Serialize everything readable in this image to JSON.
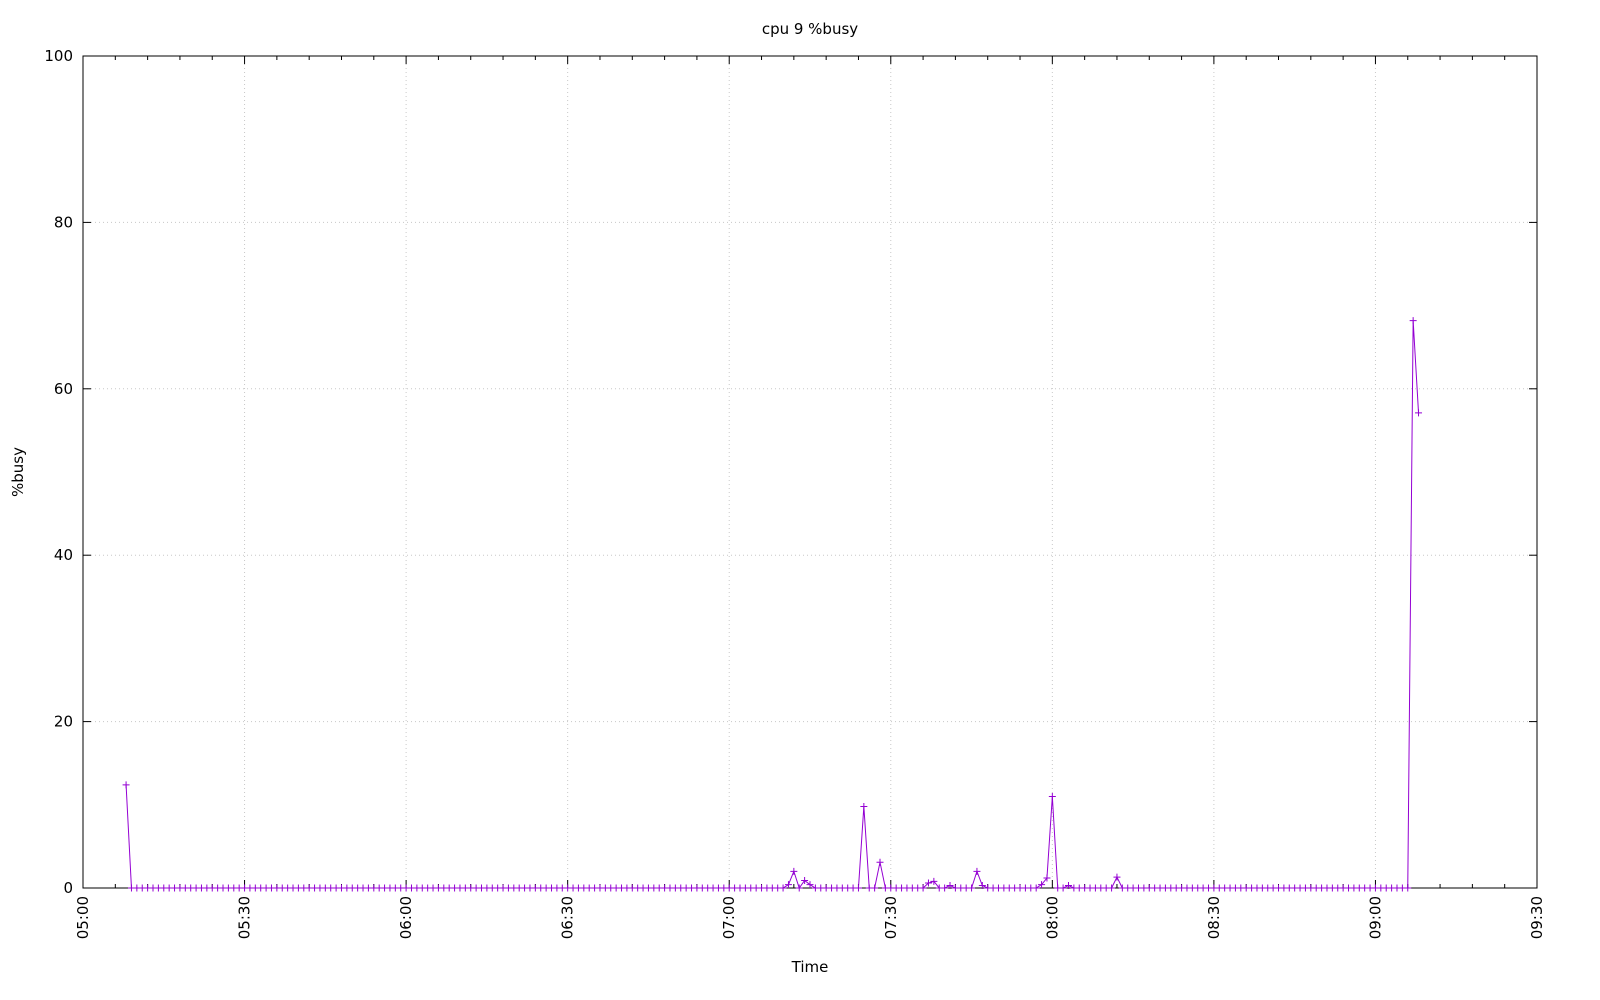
{
  "chart_data": {
    "type": "line",
    "title": "cpu 9 %busy",
    "xlabel": "Time",
    "ylabel": "%busy",
    "xlim": [
      "05:00",
      "09:30"
    ],
    "ylim": [
      0,
      100
    ],
    "x_ticks": [
      "05:00",
      "05:30",
      "06:00",
      "06:30",
      "07:00",
      "07:30",
      "08:00",
      "08:30",
      "09:00",
      "09:30"
    ],
    "y_ticks": [
      "0",
      "20",
      "40",
      "60",
      "80",
      "100"
    ],
    "grid": true,
    "marker": "plus",
    "color": "#9400d3",
    "series": [
      {
        "x": [
          "05:08",
          "05:09",
          "05:10",
          "05:11",
          "05:12",
          "05:13",
          "05:14",
          "05:15",
          "05:16",
          "05:17",
          "05:18",
          "05:19",
          "05:20",
          "05:21",
          "05:22",
          "05:23",
          "05:24",
          "05:25",
          "05:26",
          "05:27",
          "05:28",
          "05:29",
          "05:30",
          "05:31",
          "05:32",
          "05:33",
          "05:34",
          "05:35",
          "05:36",
          "05:37",
          "05:38",
          "05:39",
          "05:40",
          "05:41",
          "05:42",
          "05:43",
          "05:44",
          "05:45",
          "05:46",
          "05:47",
          "05:48",
          "05:49",
          "05:50",
          "05:51",
          "05:52",
          "05:53",
          "05:54",
          "05:55",
          "05:56",
          "05:57",
          "05:58",
          "05:59",
          "06:00",
          "06:01",
          "06:02",
          "06:03",
          "06:04",
          "06:05",
          "06:06",
          "06:07",
          "06:08",
          "06:09",
          "06:10",
          "06:11",
          "06:12",
          "06:13",
          "06:14",
          "06:15",
          "06:16",
          "06:17",
          "06:18",
          "06:19",
          "06:20",
          "06:21",
          "06:22",
          "06:23",
          "06:24",
          "06:25",
          "06:26",
          "06:27",
          "06:28",
          "06:29",
          "06:30",
          "06:31",
          "06:32",
          "06:33",
          "06:34",
          "06:35",
          "06:36",
          "06:37",
          "06:38",
          "06:39",
          "06:40",
          "06:41",
          "06:42",
          "06:43",
          "06:44",
          "06:45",
          "06:46",
          "06:47",
          "06:48",
          "06:49",
          "06:50",
          "06:51",
          "06:52",
          "06:53",
          "06:54",
          "06:55",
          "06:56",
          "06:57",
          "06:58",
          "06:59",
          "07:00",
          "07:01",
          "07:02",
          "07:03",
          "07:04",
          "07:05",
          "07:06",
          "07:07",
          "07:08",
          "07:09",
          "07:10",
          "07:11",
          "07:12",
          "07:13",
          "07:14",
          "07:15",
          "07:16",
          "07:17",
          "07:18",
          "07:19",
          "07:20",
          "07:21",
          "07:22",
          "07:23",
          "07:24",
          "07:25",
          "07:26",
          "07:27",
          "07:28",
          "07:29",
          "07:30",
          "07:31",
          "07:32",
          "07:33",
          "07:34",
          "07:35",
          "07:36",
          "07:37",
          "07:38",
          "07:39",
          "07:40",
          "07:41",
          "07:42",
          "07:43",
          "07:44",
          "07:45",
          "07:46",
          "07:47",
          "07:48",
          "07:49",
          "07:50",
          "07:51",
          "07:52",
          "07:53",
          "07:54",
          "07:55",
          "07:56",
          "07:57",
          "07:58",
          "07:59",
          "08:00",
          "08:01",
          "08:02",
          "08:03",
          "08:04",
          "08:05",
          "08:06",
          "08:07",
          "08:08",
          "08:09",
          "08:10",
          "08:11",
          "08:12",
          "08:13",
          "08:14",
          "08:15",
          "08:16",
          "08:17",
          "08:18",
          "08:19",
          "08:20",
          "08:21",
          "08:22",
          "08:23",
          "08:24",
          "08:25",
          "08:26",
          "08:27",
          "08:28",
          "08:29",
          "08:30",
          "08:31",
          "08:32",
          "08:33",
          "08:34",
          "08:35",
          "08:36",
          "08:37",
          "08:38",
          "08:39",
          "08:40",
          "08:41",
          "08:42",
          "08:43",
          "08:44",
          "08:45",
          "08:46",
          "08:47",
          "08:48",
          "08:49",
          "08:50",
          "08:51",
          "08:52",
          "08:53",
          "08:54",
          "08:55",
          "08:56",
          "08:57",
          "08:58",
          "08:59",
          "09:00",
          "09:01",
          "09:02",
          "09:03",
          "09:04",
          "09:05",
          "09:06",
          "09:07",
          "09:08"
        ],
        "y": [
          12.4,
          0,
          0,
          0,
          0,
          0,
          0,
          0,
          0,
          0,
          0,
          0,
          0,
          0,
          0,
          0,
          0,
          0,
          0,
          0,
          0,
          0,
          0,
          0,
          0,
          0,
          0,
          0,
          0,
          0,
          0,
          0,
          0,
          0,
          0,
          0,
          0,
          0,
          0,
          0,
          0,
          0,
          0,
          0,
          0,
          0,
          0,
          0,
          0,
          0,
          0,
          0,
          0,
          0,
          0,
          0,
          0,
          0,
          0,
          0,
          0,
          0,
          0,
          0,
          0,
          0,
          0,
          0,
          0,
          0,
          0,
          0,
          0,
          0,
          0,
          0,
          0,
          0,
          0,
          0,
          0,
          0,
          0,
          0,
          0,
          0,
          0,
          0,
          0,
          0,
          0,
          0,
          0,
          0,
          0,
          0,
          0,
          0,
          0,
          0,
          0,
          0,
          0,
          0,
          0,
          0,
          0,
          0,
          0,
          0,
          0,
          0,
          0,
          0,
          0,
          0,
          0,
          0,
          0,
          0,
          0,
          0,
          0,
          0.4,
          2.0,
          0,
          0.9,
          0.4,
          0,
          0,
          0,
          0,
          0,
          0,
          0,
          0,
          0,
          9.8,
          0,
          0,
          3.1,
          0,
          0,
          0,
          0,
          0,
          0,
          0,
          0,
          0.6,
          0.8,
          0,
          0,
          0.3,
          0,
          0,
          0,
          0,
          2.0,
          0.3,
          0,
          0,
          0,
          0,
          0,
          0,
          0,
          0,
          0,
          0,
          0.4,
          1.2,
          11.0,
          0,
          0,
          0.3,
          0,
          0,
          0,
          0,
          0,
          0,
          0,
          0,
          1.3,
          0,
          0,
          0,
          0,
          0,
          0,
          0,
          0,
          0,
          0,
          0,
          0,
          0,
          0,
          0,
          0,
          0,
          0,
          0,
          0,
          0,
          0,
          0,
          0,
          0,
          0,
          0,
          0,
          0,
          0,
          0,
          0,
          0,
          0,
          0,
          0,
          0,
          0,
          0,
          0,
          0,
          0,
          0,
          0,
          0,
          0,
          0,
          0,
          0,
          0,
          0,
          0,
          0,
          0,
          68.2,
          57.1
        ]
      }
    ]
  }
}
